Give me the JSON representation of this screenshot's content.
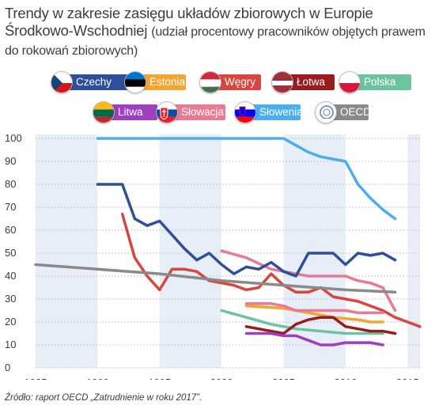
{
  "title": "Trendy w zakresie zasięgu układów zbiorowych w Europie Środkowo-Wschodniej",
  "subtitle": "(udział procentowy pracowników objętych prawem do rokowań zbiorowych)",
  "source": "Źródło: raport OECD „Zatrudnienie w roku 2017”.",
  "legend": [
    {
      "label": "Czechy",
      "color": "#2e4f9a",
      "flag": "flag-czech-icon"
    },
    {
      "label": "Estonia",
      "color": "#f2a630",
      "flag": "flag-estonia-icon"
    },
    {
      "label": "Węgry",
      "color": "#d9453f",
      "flag": "flag-hungary-icon"
    },
    {
      "label": "Łotwa",
      "color": "#9a1c1f",
      "flag": "flag-latvia-icon"
    },
    {
      "label": "Polska",
      "color": "#6cc49e",
      "flag": "flag-poland-icon"
    },
    {
      "label": "Litwa",
      "color": "#9f3fbf",
      "flag": "flag-lithuania-icon"
    },
    {
      "label": "Słowacja",
      "color": "#e87a93",
      "flag": "flag-slovakia-icon"
    },
    {
      "label": "Słowenia",
      "color": "#4aaeef",
      "flag": "flag-slovenia-icon"
    },
    {
      "label": "OECD",
      "color": "#8a8a8a",
      "flag": "oecd-logo-icon"
    }
  ],
  "chart_data": {
    "type": "line",
    "xlim": [
      1985,
      2016
    ],
    "ylim": [
      0,
      100
    ],
    "xticks": [
      "1985",
      "1990",
      "1995",
      "2000",
      "2005",
      "2010",
      "2015"
    ],
    "yticks": [
      "0",
      "10",
      "20",
      "30",
      "40",
      "50",
      "60",
      "70",
      "80",
      "90",
      "100"
    ],
    "grid": true,
    "shaded_bands": [
      [
        1985,
        1990
      ],
      [
        1995,
        2000
      ],
      [
        2005,
        2010
      ],
      [
        2015,
        2016
      ]
    ],
    "series": [
      {
        "name": "Słowenia",
        "color": "#4aaeef",
        "x": [
          1990,
          1995,
          2000,
          2005,
          2006,
          2007,
          2008,
          2009,
          2010,
          2011,
          2012,
          2013,
          2014
        ],
        "y": [
          100,
          100,
          100,
          100,
          97,
          94,
          92,
          91,
          90,
          80,
          74,
          69,
          65
        ]
      },
      {
        "name": "Słowacja",
        "color": "#e87a93",
        "x": [
          2000,
          2002,
          2004,
          2005,
          2006,
          2007,
          2008,
          2009,
          2010,
          2011,
          2012,
          2013,
          2014
        ],
        "y": [
          51,
          48,
          43,
          42,
          41,
          40,
          40,
          40,
          40,
          38,
          37,
          35,
          25
        ]
      },
      {
        "name": "Czechy",
        "color": "#2e4f9a",
        "x": [
          1990,
          1992,
          1993,
          1994,
          1995,
          1996,
          1997,
          1998,
          1999,
          2000,
          2001,
          2002,
          2003,
          2004,
          2005,
          2006,
          2007,
          2008,
          2009,
          2010,
          2011,
          2012,
          2013,
          2014
        ],
        "y": [
          80,
          80,
          65,
          62,
          64,
          58,
          52,
          47,
          50,
          45,
          41,
          44,
          43,
          46,
          42,
          40,
          50,
          50,
          50,
          45,
          50,
          49,
          50,
          47
        ]
      },
      {
        "name": "Węgry",
        "color": "#d9453f",
        "x": [
          1992,
          1993,
          1994,
          1995,
          1996,
          1997,
          1998,
          1999,
          2000,
          2001,
          2002,
          2003,
          2004,
          2005,
          2006,
          2007,
          2008,
          2009,
          2010,
          2011,
          2012,
          2013,
          2014,
          2015,
          2016
        ],
        "y": [
          67,
          48,
          40,
          34,
          43,
          43,
          42,
          38,
          37,
          36,
          34,
          35,
          41,
          36,
          33,
          33,
          35,
          31,
          30,
          29,
          27,
          25,
          22,
          20,
          18
        ]
      },
      {
        "name": "OECD",
        "color": "#8a8a8a",
        "x": [
          1985,
          1990,
          1995,
          2000,
          2005,
          2010,
          2014
        ],
        "y": [
          45,
          43,
          41,
          38,
          36,
          34,
          33
        ]
      },
      {
        "name": "Polska",
        "color": "#6cc49e",
        "x": [
          2000,
          2002,
          2004,
          2006,
          2008,
          2010,
          2012,
          2013
        ],
        "y": [
          25,
          22,
          19,
          17,
          16,
          15,
          15,
          15
        ]
      },
      {
        "name": "Estonia",
        "color": "#f2a630",
        "x": [
          2002,
          2005,
          2007,
          2009,
          2011,
          2012,
          2013
        ],
        "y": [
          27,
          26,
          24,
          22,
          21,
          20,
          20
        ]
      },
      {
        "name": "Łotwa",
        "color": "#9a1c1f",
        "x": [
          2002,
          2004,
          2005,
          2006,
          2007,
          2008,
          2009,
          2010,
          2011,
          2012,
          2013,
          2014
        ],
        "y": [
          18,
          16,
          15,
          19,
          21,
          22,
          22,
          18,
          17,
          16,
          16,
          15
        ]
      },
      {
        "name": "Litwa",
        "color": "#9f3fbf",
        "x": [
          2002,
          2004,
          2005,
          2006,
          2007,
          2008,
          2009,
          2010,
          2011,
          2012,
          2013
        ],
        "y": [
          15,
          15,
          14,
          14,
          12,
          10,
          10,
          11,
          11,
          11,
          10
        ]
      },
      {
        "name": "Słowacja (upper)",
        "color": "#e87a93",
        "x": [
          2002,
          2004,
          2005,
          2006,
          2007,
          2008,
          2009,
          2010,
          2011,
          2012,
          2013
        ],
        "y": [
          28,
          28,
          27,
          25,
          25,
          25,
          25,
          25,
          24,
          24,
          24
        ]
      }
    ]
  }
}
